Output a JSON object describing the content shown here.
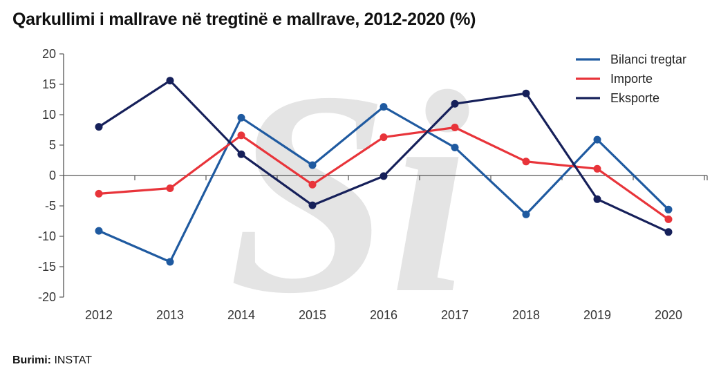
{
  "chart_data": {
    "type": "line",
    "title": "Qarkullimi i mallrave në tregtinë e mallrave, 2012-2020 (%)",
    "categories": [
      "2012",
      "2013",
      "2014",
      "2015",
      "2016",
      "2017",
      "2018",
      "2019",
      "2020"
    ],
    "ylim": [
      -20,
      20
    ],
    "yticks": [
      "20",
      "15",
      "10",
      "5",
      "0",
      "-5",
      "-10",
      "-15",
      "-20"
    ],
    "ytick_values": [
      20,
      15,
      10,
      5,
      0,
      -5,
      -10,
      -15,
      -20
    ],
    "grid": false,
    "legend_position": "top-right",
    "series": [
      {
        "name": "Bilanci tregtar",
        "color": "#1f5aa0",
        "values": [
          -9.1,
          -14.2,
          9.5,
          1.7,
          11.3,
          4.6,
          -6.4,
          5.9,
          -5.6
        ]
      },
      {
        "name": "Importe",
        "color": "#e8343a",
        "values": [
          -3.0,
          -2.1,
          6.6,
          -1.5,
          6.3,
          7.9,
          2.3,
          1.1,
          -7.2
        ]
      },
      {
        "name": "Eksporte",
        "color": "#16205a",
        "values": [
          8.0,
          15.6,
          3.5,
          -4.9,
          -0.1,
          11.8,
          13.5,
          -3.9,
          -9.3
        ]
      }
    ]
  },
  "watermark": "Si",
  "source": {
    "label": "Burimi:",
    "value": " INSTAT"
  }
}
